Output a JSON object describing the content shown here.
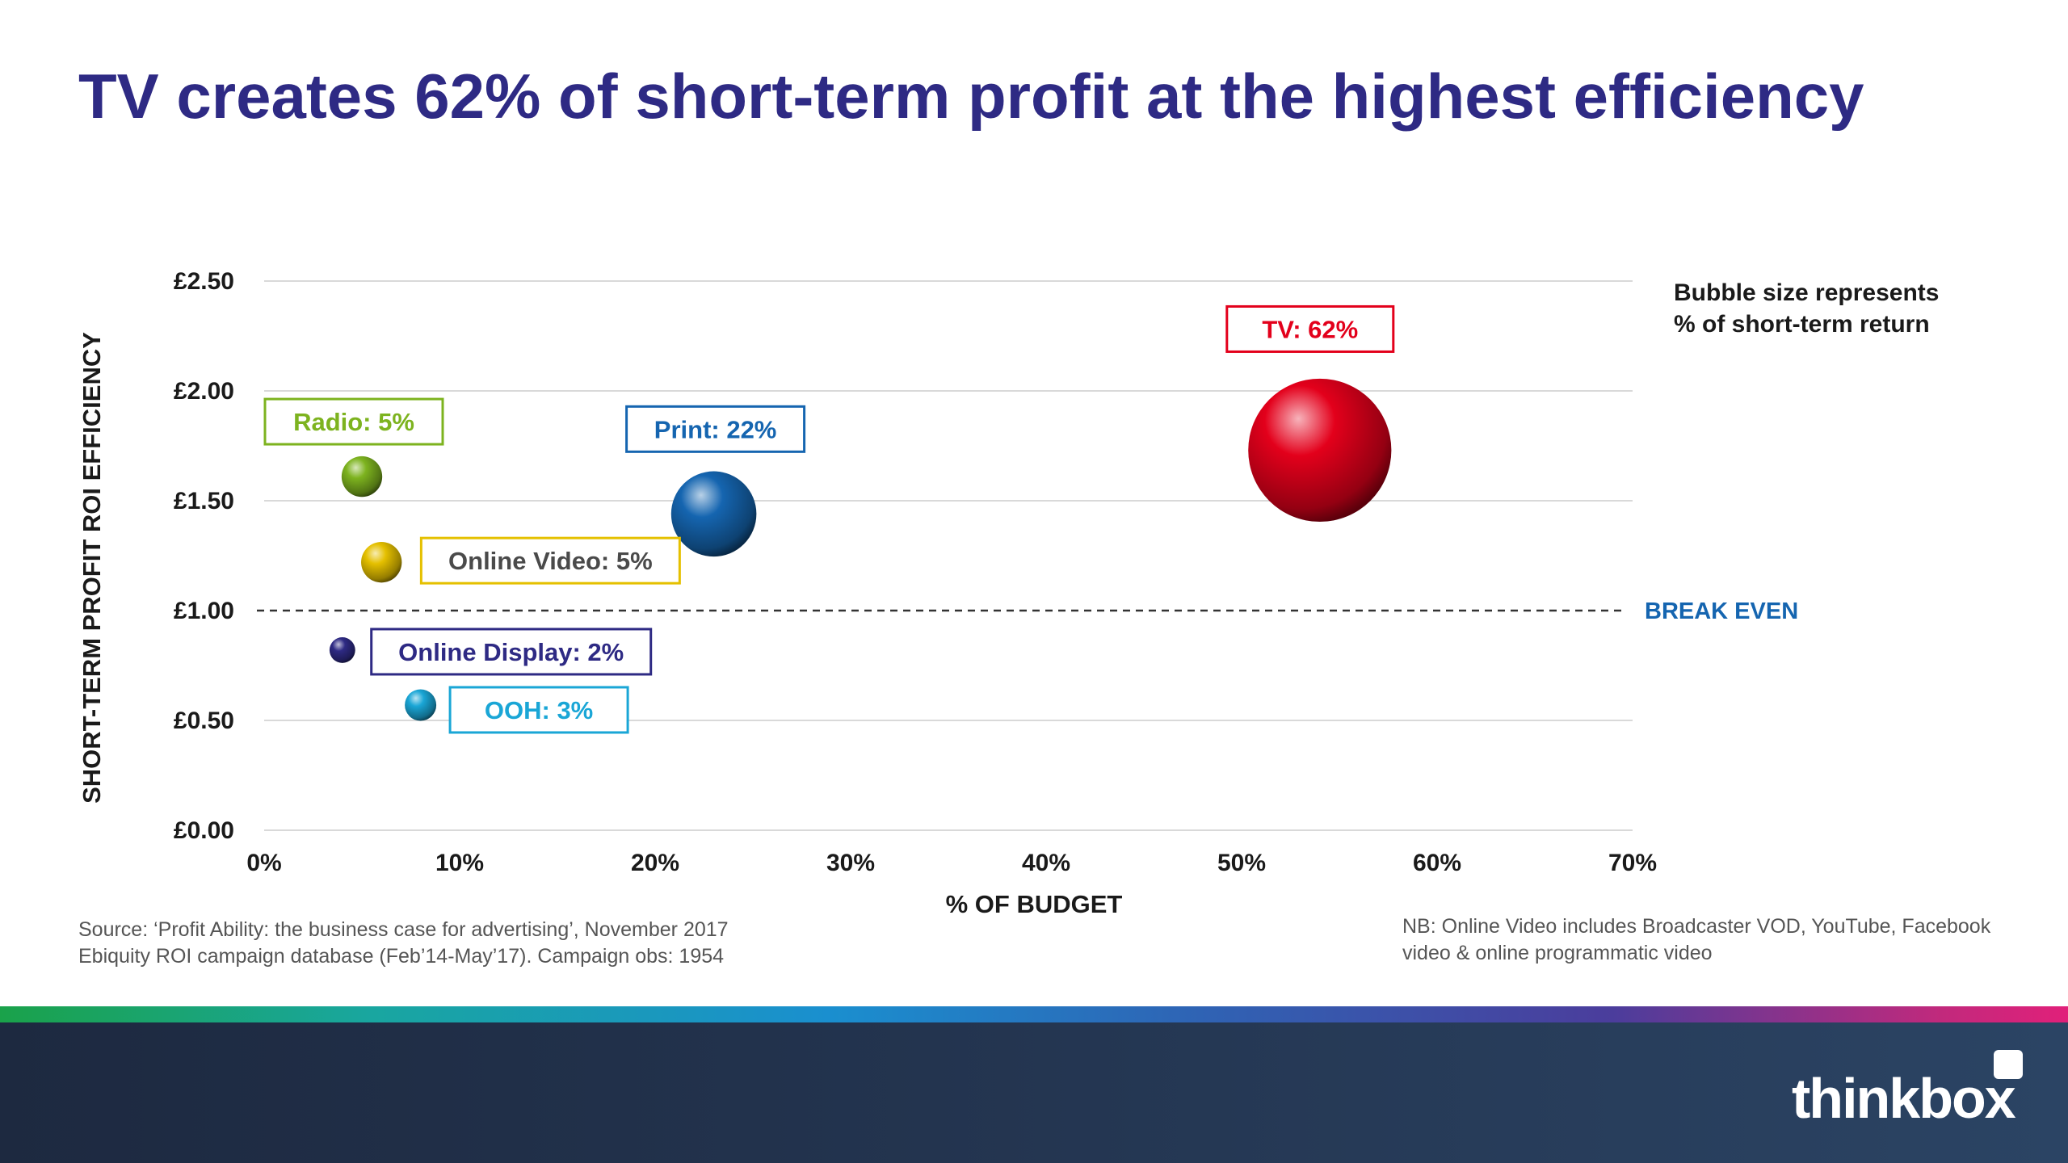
{
  "title": "TV creates 62% of short-term profit at the highest efficiency",
  "bubble_note": [
    "Bubble size represents",
    "% of short-term return"
  ],
  "break_even_label": "BREAK EVEN",
  "source_lines": [
    "Source: ‘Profit Ability: the business case for advertising’, November 2017",
    "Ebiquity ROI campaign database (Feb’14-May’17). Campaign obs: 1954"
  ],
  "nb_lines": [
    "NB: Online Video includes Broadcaster VOD, YouTube, Facebook",
    "video & online programmatic video"
  ],
  "logo_text": "thinkbox",
  "colors": {
    "title": "#2e2a84",
    "tv": "#e3001b",
    "print": "#1565b0",
    "radio": "#7db31f",
    "online_video": "#e5c000",
    "online_display": "#2e2a84",
    "ooh": "#1aa6d6",
    "break_even": "#1565b0"
  },
  "chart_data": {
    "type": "scatter",
    "xlabel": "% OF BUDGET",
    "ylabel": "SHORT-TERM PROFIT ROI EFFICIENCY",
    "xlim": [
      0,
      70
    ],
    "ylim": [
      0,
      2.5
    ],
    "x_ticks": [
      0,
      10,
      20,
      30,
      40,
      50,
      60,
      70
    ],
    "x_tick_labels": [
      "0%",
      "10%",
      "20%",
      "30%",
      "40%",
      "50%",
      "60%",
      "70%"
    ],
    "y_ticks": [
      0,
      0.5,
      1.0,
      1.5,
      2.0,
      2.5
    ],
    "y_tick_labels": [
      "£0.00",
      "£0.50",
      "£1.00",
      "£1.50",
      "£2.00",
      "£2.50"
    ],
    "grid": true,
    "reference_line": {
      "y": 1.0,
      "label": "BREAK EVEN",
      "style": "dashed"
    },
    "points": [
      {
        "name": "TV",
        "label": "TV: 62%",
        "x": 54,
        "y": 1.73,
        "size": 62,
        "color": "#e3001b",
        "label_pos": "above"
      },
      {
        "name": "Print",
        "label": "Print: 22%",
        "x": 23,
        "y": 1.44,
        "size": 22,
        "color": "#1565b0",
        "label_pos": "above"
      },
      {
        "name": "Radio",
        "label": "Radio: 5%",
        "x": 5,
        "y": 1.61,
        "size": 5,
        "color": "#7db31f",
        "label_pos": "above"
      },
      {
        "name": "Online Video",
        "label": "Online Video: 5%",
        "x": 6,
        "y": 1.22,
        "size": 5,
        "color": "#e5c000",
        "label_pos": "right"
      },
      {
        "name": "Online Display",
        "label": "Online Display: 2%",
        "x": 4,
        "y": 0.82,
        "size": 2,
        "color": "#2e2a84",
        "label_pos": "right"
      },
      {
        "name": "OOH",
        "label": "OOH: 3%",
        "x": 8,
        "y": 0.57,
        "size": 3,
        "color": "#1aa6d6",
        "label_pos": "right"
      }
    ]
  }
}
